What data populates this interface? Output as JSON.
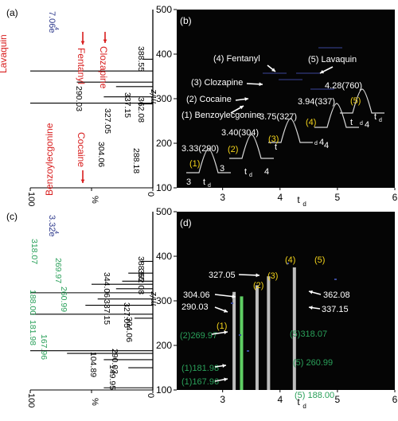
{
  "colors": {
    "red": "#d81e1e",
    "blue": "#2e3a8c",
    "green": "#2aa05a",
    "yellow": "#f2d21a",
    "black": "#000000",
    "white": "#ffffff",
    "bg_dark": "#050505"
  },
  "panels": {
    "a": "(a)",
    "b": "(b)",
    "c": "(c)",
    "d": "(d)"
  },
  "chart_data": [
    {
      "panel": "(a)",
      "type": "bar",
      "orientation": "horizontal",
      "xlabel": "%",
      "x_ticks": [
        "100",
        "0"
      ],
      "xlim": [
        100,
        0
      ],
      "ylim": [
        100,
        500
      ],
      "intensity_label": "7.06e",
      "intensity_exp": "4",
      "peaks": [
        {
          "mz": 388.55,
          "rel": 8
        },
        {
          "mz": 362.08,
          "rel": 100
        },
        {
          "mz": 337.15,
          "rel": 62
        },
        {
          "mz": 327.05,
          "rel": 30
        },
        {
          "mz": 304.06,
          "rel": 40
        },
        {
          "mz": 290.03,
          "rel": 100
        },
        {
          "mz": 288.18,
          "rel": 12
        }
      ],
      "mz_labels": [
        {
          "text": "388.55",
          "mz": 388.55,
          "color": "black"
        },
        {
          "text": "362.08",
          "mz": 362.08,
          "color": "black"
        },
        {
          "text": "337.15",
          "mz": 337.15,
          "color": "black"
        },
        {
          "text": "327.05",
          "mz": 327.05,
          "color": "black"
        },
        {
          "text": "304.06",
          "mz": 304.06,
          "color": "black"
        },
        {
          "text": "290.03",
          "mz": 290.03,
          "color": "black"
        },
        {
          "text": "288.18",
          "mz": 288.18,
          "color": "black"
        }
      ],
      "compound_labels": [
        "Lavaquin",
        "Benzoylecgonine",
        "Fentanyl",
        "Cocaine",
        "Clozapine"
      ]
    },
    {
      "panel": "(b)",
      "type": "heatmap",
      "xlabel": "t",
      "xlabel_sub": "d",
      "ylabel": "m/z",
      "x_ticks": [
        3,
        4,
        5,
        6
      ],
      "y_ticks": [
        100,
        200,
        300,
        400,
        500
      ],
      "xlim": [
        2.2,
        6
      ],
      "ylim": [
        100,
        500
      ],
      "legend": [
        "(4) Fentanyl",
        "(5) Lavaquin",
        "(3) Clozapine",
        "(2) Cocaine",
        "(1) Benzoylecgonine"
      ],
      "mobility_peaks": [
        {
          "label": "3.33(290)",
          "index": "(1)",
          "td": 3.33,
          "mz": 290
        },
        {
          "label": "3.40(304)",
          "index": "(2)",
          "td": 3.4,
          "mz": 304
        },
        {
          "label": "3.75(327)",
          "index": "(3)",
          "td": 3.75,
          "mz": 327
        },
        {
          "label": "3.94(337)",
          "index": "(4)",
          "td": 3.94,
          "mz": 337
        },
        {
          "label": "4.28(760)",
          "index": "(5)",
          "td": 4.28,
          "mz": 760
        }
      ],
      "inset_axis_labels": [
        "3",
        "t",
        "d",
        "3",
        "t",
        "d",
        "4",
        "t",
        "d",
        "4",
        "4",
        "t",
        "d",
        "4",
        "t",
        "d"
      ]
    },
    {
      "panel": "(c)",
      "type": "bar",
      "orientation": "horizontal",
      "xlabel": "%",
      "x_ticks": [
        "100",
        "0"
      ],
      "xlim": [
        100,
        0
      ],
      "ylim": [
        100,
        500
      ],
      "intensity_label": "3.32e",
      "intensity_exp": "4",
      "peaks": [
        {
          "mz": 388.55,
          "rel": 10
        },
        {
          "mz": 362.08,
          "rel": 20
        },
        {
          "mz": 344.06,
          "rel": 25
        },
        {
          "mz": 337.15,
          "rel": 50
        },
        {
          "mz": 327.05,
          "rel": 30
        },
        {
          "mz": 318.07,
          "rel": 100
        },
        {
          "mz": 304.06,
          "rel": 45
        },
        {
          "mz": 290.03,
          "rel": 55
        },
        {
          "mz": 269.97,
          "rel": 100
        },
        {
          "mz": 260.99,
          "rel": 15
        },
        {
          "mz": 188.0,
          "rel": 100
        },
        {
          "mz": 181.98,
          "rel": 70
        },
        {
          "mz": 167.96,
          "rel": 40
        },
        {
          "mz": 149.95,
          "rel": 20
        },
        {
          "mz": 104.89,
          "rel": 40
        }
      ],
      "mz_labels": [
        {
          "text": "388.55",
          "mz": 388.55,
          "color": "black"
        },
        {
          "text": "362.08",
          "mz": 362.08,
          "color": "black"
        },
        {
          "text": "344.06",
          "mz": 344.06,
          "color": "black"
        },
        {
          "text": "337.15",
          "mz": 337.15,
          "color": "black"
        },
        {
          "text": "327.05",
          "mz": 327.05,
          "color": "black"
        },
        {
          "text": "318.07",
          "mz": 318.07,
          "color": "green"
        },
        {
          "text": "304.06",
          "mz": 304.06,
          "color": "black"
        },
        {
          "text": "290.03",
          "mz": 290.03,
          "color": "black"
        },
        {
          "text": "269.97",
          "mz": 269.97,
          "color": "green"
        },
        {
          "text": "260.99",
          "mz": 260.99,
          "color": "green"
        },
        {
          "text": "188.00",
          "mz": 188.0,
          "color": "green"
        },
        {
          "text": "181.98",
          "mz": 181.98,
          "color": "green"
        },
        {
          "text": "167.96",
          "mz": 167.96,
          "color": "green"
        },
        {
          "text": "149.95",
          "mz": 149.95,
          "color": "black"
        },
        {
          "text": "104.89",
          "mz": 104.89,
          "color": "black"
        }
      ]
    },
    {
      "panel": "(d)",
      "type": "heatmap",
      "xlabel": "t",
      "xlabel_sub": "d",
      "ylabel": "m/z",
      "x_ticks": [
        3,
        4,
        5,
        6
      ],
      "y_ticks": [
        100,
        200,
        300,
        400,
        500
      ],
      "xlim": [
        2.2,
        6
      ],
      "ylim": [
        100,
        500
      ],
      "streaks": [
        {
          "td": 3.2,
          "mz_top": 320,
          "color": "grey"
        },
        {
          "td": 3.33,
          "mz_top": 310,
          "color": "green"
        },
        {
          "td": 3.6,
          "mz_top": 335,
          "color": "grey"
        },
        {
          "td": 3.8,
          "mz_top": 355,
          "color": "grey"
        },
        {
          "td": 4.25,
          "mz_top": 375,
          "color": "grey"
        }
      ],
      "annotations": [
        {
          "text": "(4)",
          "color": "yellow"
        },
        {
          "text": "(5)",
          "color": "yellow"
        },
        {
          "text": "(3)",
          "color": "yellow"
        },
        {
          "text": "(2)",
          "color": "yellow"
        },
        {
          "text": "(1)",
          "color": "yellow"
        },
        {
          "text": "327.05",
          "color": "white"
        },
        {
          "text": "304.06",
          "color": "white"
        },
        {
          "text": "290.03",
          "color": "white"
        },
        {
          "text": "362.08",
          "color": "white"
        },
        {
          "text": "337.15",
          "color": "white"
        },
        {
          "text": "(5)318.07",
          "color": "green"
        },
        {
          "text": "(2)269.97",
          "color": "green"
        },
        {
          "text": "(5) 260.99",
          "color": "green"
        },
        {
          "text": "(1)181.98",
          "color": "green"
        },
        {
          "text": "(1)167.96",
          "color": "green"
        },
        {
          "text": "(5) 188.00",
          "color": "green"
        }
      ]
    }
  ]
}
